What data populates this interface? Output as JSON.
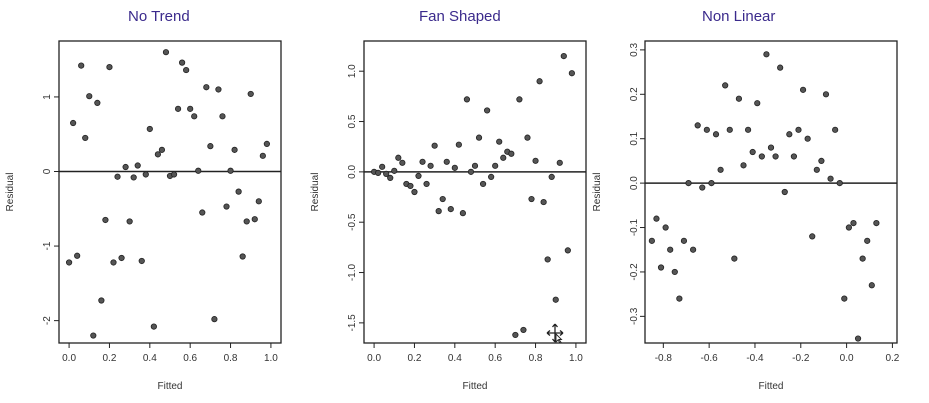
{
  "chart_data": [
    {
      "type": "scatter",
      "title": "No Trend",
      "xlabel": "Fitted",
      "ylabel": "Residual",
      "xlim": [
        -0.05,
        1.05
      ],
      "ylim": [
        -2.3,
        1.75
      ],
      "xticks": [
        "0.0",
        "0.2",
        "0.4",
        "0.6",
        "0.8",
        "1.0"
      ],
      "xtick_values": [
        0,
        0.2,
        0.4,
        0.6,
        0.8,
        1.0
      ],
      "yticks": [
        "-2",
        "-1",
        "0",
        "1"
      ],
      "ytick_values": [
        -2,
        -1,
        0,
        1
      ],
      "reference_line_y": 0,
      "points": [
        [
          0.0,
          -1.22
        ],
        [
          0.02,
          0.65
        ],
        [
          0.04,
          -1.13
        ],
        [
          0.06,
          1.42
        ],
        [
          0.08,
          0.45
        ],
        [
          0.1,
          1.01
        ],
        [
          0.12,
          -2.2
        ],
        [
          0.14,
          0.92
        ],
        [
          0.16,
          -1.73
        ],
        [
          0.18,
          -0.65
        ],
        [
          0.2,
          1.4
        ],
        [
          0.22,
          -1.22
        ],
        [
          0.24,
          -0.07
        ],
        [
          0.26,
          -1.16
        ],
        [
          0.28,
          0.06
        ],
        [
          0.3,
          -0.67
        ],
        [
          0.32,
          -0.08
        ],
        [
          0.34,
          0.08
        ],
        [
          0.36,
          -1.2
        ],
        [
          0.38,
          -0.04
        ],
        [
          0.4,
          0.57
        ],
        [
          0.42,
          -2.08
        ],
        [
          0.44,
          0.23
        ],
        [
          0.46,
          0.29
        ],
        [
          0.48,
          1.6
        ],
        [
          0.5,
          -0.06
        ],
        [
          0.52,
          -0.04
        ],
        [
          0.54,
          0.84
        ],
        [
          0.56,
          1.46
        ],
        [
          0.58,
          1.36
        ],
        [
          0.6,
          0.84
        ],
        [
          0.62,
          0.74
        ],
        [
          0.64,
          0.01
        ],
        [
          0.66,
          -0.55
        ],
        [
          0.68,
          1.13
        ],
        [
          0.7,
          0.34
        ],
        [
          0.72,
          -1.98
        ],
        [
          0.74,
          1.1
        ],
        [
          0.76,
          0.74
        ],
        [
          0.78,
          -0.47
        ],
        [
          0.8,
          0.01
        ],
        [
          0.82,
          0.29
        ],
        [
          0.84,
          -0.27
        ],
        [
          0.86,
          -1.14
        ],
        [
          0.88,
          -0.67
        ],
        [
          0.9,
          1.04
        ],
        [
          0.92,
          -0.64
        ],
        [
          0.94,
          -0.4
        ],
        [
          0.96,
          0.21
        ],
        [
          0.98,
          0.37
        ]
      ]
    },
    {
      "type": "scatter",
      "title": "Fan Shaped",
      "xlabel": "Fitted",
      "ylabel": "Residual",
      "xlim": [
        -0.05,
        1.05
      ],
      "ylim": [
        -1.7,
        1.3
      ],
      "xticks": [
        "0.0",
        "0.2",
        "0.4",
        "0.6",
        "0.8",
        "1.0"
      ],
      "xtick_values": [
        0,
        0.2,
        0.4,
        0.6,
        0.8,
        1.0
      ],
      "yticks": [
        "-1.5",
        "-1.0",
        "-0.5",
        "0.0",
        "0.5",
        "1.0"
      ],
      "ytick_values": [
        -1.5,
        -1.0,
        -0.5,
        0.0,
        0.5,
        1.0
      ],
      "reference_line_y": 0,
      "points": [
        [
          0.0,
          0.0
        ],
        [
          0.02,
          -0.01
        ],
        [
          0.04,
          0.05
        ],
        [
          0.06,
          -0.02
        ],
        [
          0.08,
          -0.06
        ],
        [
          0.1,
          0.01
        ],
        [
          0.12,
          0.14
        ],
        [
          0.14,
          0.09
        ],
        [
          0.16,
          -0.12
        ],
        [
          0.18,
          -0.14
        ],
        [
          0.2,
          -0.2
        ],
        [
          0.22,
          -0.04
        ],
        [
          0.24,
          0.1
        ],
        [
          0.26,
          -0.12
        ],
        [
          0.28,
          0.06
        ],
        [
          0.3,
          0.26
        ],
        [
          0.32,
          -0.39
        ],
        [
          0.34,
          -0.27
        ],
        [
          0.36,
          0.1
        ],
        [
          0.38,
          -0.37
        ],
        [
          0.4,
          0.04
        ],
        [
          0.42,
          0.27
        ],
        [
          0.44,
          -0.41
        ],
        [
          0.46,
          0.72
        ],
        [
          0.48,
          0.0
        ],
        [
          0.5,
          0.06
        ],
        [
          0.52,
          0.34
        ],
        [
          0.54,
          -0.12
        ],
        [
          0.56,
          0.61
        ],
        [
          0.58,
          -0.05
        ],
        [
          0.6,
          0.06
        ],
        [
          0.62,
          0.3
        ],
        [
          0.64,
          0.14
        ],
        [
          0.66,
          0.2
        ],
        [
          0.68,
          0.18
        ],
        [
          0.7,
          -1.62
        ],
        [
          0.72,
          0.72
        ],
        [
          0.74,
          -1.57
        ],
        [
          0.76,
          0.34
        ],
        [
          0.78,
          -0.27
        ],
        [
          0.8,
          0.11
        ],
        [
          0.82,
          0.9
        ],
        [
          0.84,
          -0.3
        ],
        [
          0.86,
          -0.87
        ],
        [
          0.88,
          -0.05
        ],
        [
          0.9,
          -1.27
        ],
        [
          0.92,
          0.09
        ],
        [
          0.94,
          1.15
        ],
        [
          0.96,
          -0.78
        ],
        [
          0.98,
          0.98
        ]
      ]
    },
    {
      "type": "scatter",
      "title": "Non Linear",
      "xlabel": "Fitted",
      "ylabel": "Residual",
      "xlim": [
        -0.88,
        0.22
      ],
      "ylim": [
        -0.36,
        0.32
      ],
      "xticks": [
        "-0.8",
        "-0.6",
        "-0.4",
        "-0.2",
        "0.0",
        "0.2"
      ],
      "xtick_values": [
        -0.8,
        -0.6,
        -0.4,
        -0.2,
        0.0,
        0.2
      ],
      "yticks": [
        "-0.3",
        "-0.2",
        "-0.1",
        "0.0",
        "0.1",
        "0.2",
        "0.3"
      ],
      "ytick_values": [
        -0.3,
        -0.2,
        -0.1,
        0.0,
        0.1,
        0.2,
        0.3
      ],
      "reference_line_y": 0,
      "points": [
        [
          -0.85,
          -0.13
        ],
        [
          -0.83,
          -0.08
        ],
        [
          -0.81,
          -0.19
        ],
        [
          -0.79,
          -0.1
        ],
        [
          -0.77,
          -0.15
        ],
        [
          -0.75,
          -0.2
        ],
        [
          -0.73,
          -0.26
        ],
        [
          -0.71,
          -0.13
        ],
        [
          -0.69,
          0.0
        ],
        [
          -0.67,
          -0.15
        ],
        [
          -0.65,
          0.13
        ],
        [
          -0.63,
          -0.01
        ],
        [
          -0.61,
          0.12
        ],
        [
          -0.59,
          0.0
        ],
        [
          -0.57,
          0.11
        ],
        [
          -0.55,
          0.03
        ],
        [
          -0.53,
          0.22
        ],
        [
          -0.51,
          0.12
        ],
        [
          -0.49,
          -0.17
        ],
        [
          -0.47,
          0.19
        ],
        [
          -0.45,
          0.04
        ],
        [
          -0.43,
          0.12
        ],
        [
          -0.41,
          0.07
        ],
        [
          -0.39,
          0.18
        ],
        [
          -0.37,
          0.06
        ],
        [
          -0.35,
          0.29
        ],
        [
          -0.33,
          0.08
        ],
        [
          -0.31,
          0.06
        ],
        [
          -0.29,
          0.26
        ],
        [
          -0.27,
          -0.02
        ],
        [
          -0.25,
          0.11
        ],
        [
          -0.23,
          0.06
        ],
        [
          -0.21,
          0.12
        ],
        [
          -0.19,
          0.21
        ],
        [
          -0.17,
          0.1
        ],
        [
          -0.15,
          -0.12
        ],
        [
          -0.13,
          0.03
        ],
        [
          -0.11,
          0.05
        ],
        [
          -0.09,
          0.2
        ],
        [
          -0.07,
          0.01
        ],
        [
          -0.05,
          0.12
        ],
        [
          -0.03,
          0.0
        ],
        [
          -0.01,
          -0.26
        ],
        [
          0.01,
          -0.1
        ],
        [
          0.03,
          -0.09
        ],
        [
          0.05,
          -0.35
        ],
        [
          0.07,
          -0.17
        ],
        [
          0.09,
          -0.13
        ],
        [
          0.11,
          -0.23
        ],
        [
          0.13,
          -0.09
        ]
      ]
    }
  ]
}
